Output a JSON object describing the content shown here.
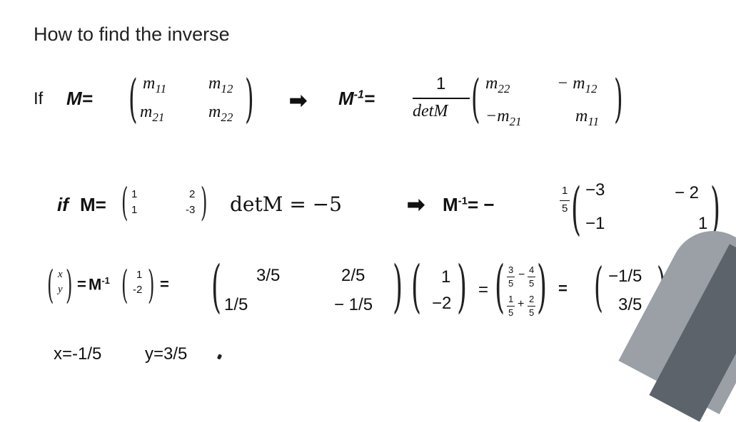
{
  "title": "How to find the inverse",
  "row1": {
    "if": "If",
    "m_eq": "M=",
    "m11": "m",
    "m11_sub": "11",
    "m12": "m",
    "m12_sub": "12",
    "m21": "m",
    "m21_sub": "21",
    "m22": "m",
    "m22_sub": "22",
    "minv_eq": "M",
    "minv_sup": "-1",
    "minv_eq2": "=",
    "frac_num": "1",
    "frac_den": "detM",
    "r_m22": "m",
    "r_m22_sub": "22",
    "r_neg_m12": "− m",
    "r_neg_m12_sub": "12",
    "r_neg_m21": "−m",
    "r_neg_m21_sub": "21",
    "r_m11": "m",
    "r_m11_sub": "11"
  },
  "row2": {
    "if": "if",
    "m_eq": "M=",
    "a": "1",
    "b": "2",
    "c": "1",
    "d": "-3",
    "det": "detM = −5",
    "minv": "M",
    "minv_sup": "-1",
    "minv_eq": "= −",
    "frac_num": "1",
    "frac_den": "5",
    "e11": "−3",
    "e12": "− 2",
    "e21": "−1",
    "e22": "1"
  },
  "row3": {
    "x": "x",
    "y": "y",
    "eq1": "= ",
    "minv": "M",
    "minv_sup": "-1",
    "v1": "1",
    "v2": "-2",
    "eq2": "=",
    "a11": "3/5",
    "a12": "2/5",
    "a21": "1/5",
    "a22": "− 1/5",
    "b1": "1",
    "b2": "−2",
    "eq3": "=",
    "f1n": "3",
    "f1d": "5",
    "f1op": "−",
    "f2n": "4",
    "f2d": "5",
    "f3n": "1",
    "f3d": "5",
    "f3op": "+",
    "f4n": "2",
    "f4d": "5",
    "eq4": "=",
    "r1": "−1/5",
    "r2": "3/5"
  },
  "answer": {
    "x": "x=-1/5",
    "y": "y=3/5"
  },
  "icons": [
    "right-arrow-icon"
  ]
}
